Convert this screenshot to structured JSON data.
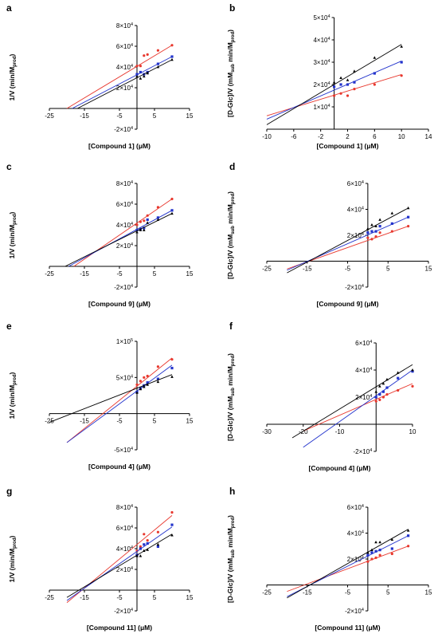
{
  "chart_data": [
    {
      "type": "scatter",
      "panel": "a",
      "xlabel": "[Compound 1] (μM)",
      "ylabel": "1/V (min/M",
      "ylabel_sub": "prod",
      "ylabel_end": ")",
      "xlim": [
        -25,
        15
      ],
      "ylim": [
        -20000,
        80000
      ],
      "xticks": [
        -25,
        -15,
        -5,
        5,
        15
      ],
      "yticks": [
        {
          "v": -20000,
          "m": "-2",
          "e": "4"
        },
        {
          "v": 20000,
          "m": "2",
          "e": "4"
        },
        {
          "v": 40000,
          "m": "4",
          "e": "4"
        },
        {
          "v": 60000,
          "m": "6",
          "e": "4"
        },
        {
          "v": 80000,
          "m": "8",
          "e": "4"
        }
      ],
      "series": [
        {
          "color": "#e8382e",
          "marker": "circle",
          "x": [
            0,
            1,
            2,
            3,
            6,
            10
          ],
          "y": [
            41000,
            41000,
            51000,
            52000,
            56000,
            61000
          ],
          "line": [
            [
              -20,
              0
            ],
            [
              10,
              61000
            ]
          ]
        },
        {
          "color": "#2233cc",
          "marker": "square",
          "x": [
            0,
            1,
            2,
            3,
            6,
            10
          ],
          "y": [
            33000,
            35000,
            33000,
            35000,
            43000,
            50000
          ],
          "line": [
            [
              -18.5,
              0
            ],
            [
              10,
              50000
            ]
          ]
        },
        {
          "color": "#000000",
          "marker": "triangle",
          "x": [
            0,
            1,
            2,
            3,
            6,
            10
          ],
          "y": [
            31000,
            29000,
            31000,
            34000,
            40000,
            47000
          ],
          "line": [
            [
              -17,
              0
            ],
            [
              10,
              47000
            ]
          ]
        }
      ]
    },
    {
      "type": "scatter",
      "panel": "b",
      "xlabel": "[Compound 1] (μM)",
      "ylabel": "[D-Glc]/V (mM",
      "ylabel_sub": "sub",
      "ylabel_mid": " min/M",
      "ylabel_sub2": "prod",
      "ylabel_end": ")",
      "xlim": [
        -10,
        14
      ],
      "ylim": [
        0,
        50000
      ],
      "yaxis_at_x": 0,
      "xticks": [
        -10,
        -6,
        -2,
        2,
        6,
        10,
        14
      ],
      "yticks": [
        {
          "v": 10000,
          "m": "1",
          "e": "4"
        },
        {
          "v": 20000,
          "m": "2",
          "e": "4"
        },
        {
          "v": 30000,
          "m": "3",
          "e": "4"
        },
        {
          "v": 40000,
          "m": "4",
          "e": "4"
        },
        {
          "v": 50000,
          "m": "5",
          "e": "4"
        }
      ],
      "series": [
        {
          "color": "#e8382e",
          "marker": "circle",
          "x": [
            0,
            1,
            2,
            3,
            6,
            10
          ],
          "y": [
            15000,
            16000,
            15000,
            18000,
            20000,
            24000
          ],
          "line": [
            [
              -10,
              6000
            ],
            [
              10,
              24500
            ]
          ]
        },
        {
          "color": "#2233cc",
          "marker": "square",
          "x": [
            0,
            1,
            2,
            3,
            6,
            10
          ],
          "y": [
            19000,
            20000,
            20000,
            21000,
            25000,
            30000
          ],
          "line": [
            [
              -10,
              4500
            ],
            [
              10,
              30500
            ]
          ]
        },
        {
          "color": "#000000",
          "marker": "triangle",
          "x": [
            0,
            1,
            2,
            3,
            6,
            10
          ],
          "y": [
            21000,
            23000,
            22000,
            26000,
            32000,
            37000
          ],
          "line": [
            [
              -10,
              2000
            ],
            [
              10,
              38000
            ]
          ]
        }
      ]
    },
    {
      "type": "scatter",
      "panel": "c",
      "xlabel": "[Compound 9] (μM)",
      "ylabel": "1/V (min/M",
      "ylabel_sub": "prod",
      "ylabel_end": ")",
      "xlim": [
        -25,
        15
      ],
      "ylim": [
        -20000,
        80000
      ],
      "xticks": [
        -25,
        -15,
        -5,
        5,
        15
      ],
      "yticks": [
        {
          "v": -20000,
          "m": "-2",
          "e": "4"
        },
        {
          "v": 20000,
          "m": "2",
          "e": "4"
        },
        {
          "v": 40000,
          "m": "4",
          "e": "4"
        },
        {
          "v": 60000,
          "m": "6",
          "e": "4"
        },
        {
          "v": 80000,
          "m": "8",
          "e": "4"
        }
      ],
      "series": [
        {
          "color": "#e8382e",
          "marker": "circle",
          "x": [
            0,
            1,
            2,
            3,
            6,
            10
          ],
          "y": [
            40000,
            43000,
            44000,
            49000,
            57000,
            65000
          ],
          "line": [
            [
              -18,
              0
            ],
            [
              10,
              65000
            ]
          ]
        },
        {
          "color": "#2233cc",
          "marker": "square",
          "x": [
            0,
            1,
            2,
            3,
            6,
            10
          ],
          "y": [
            35000,
            36000,
            37000,
            45000,
            47000,
            54000
          ],
          "line": [
            [
              -19.5,
              0
            ],
            [
              10,
              54000
            ]
          ]
        },
        {
          "color": "#000000",
          "marker": "triangle",
          "x": [
            0,
            1,
            2,
            3,
            6,
            10
          ],
          "y": [
            33000,
            35000,
            35000,
            42000,
            45000,
            51000
          ],
          "line": [
            [
              -20.5,
              0
            ],
            [
              10,
              51000
            ]
          ]
        }
      ]
    },
    {
      "type": "scatter",
      "panel": "d",
      "xlabel": "[Compound 9] (μM)",
      "ylabel": "[D-Glc]/V (mM",
      "ylabel_sub": "sub",
      "ylabel_mid": " min/M",
      "ylabel_sub2": "prod",
      "ylabel_end": ")",
      "xlim": [
        -25,
        15
      ],
      "ylim": [
        -20000,
        60000
      ],
      "xticks": [
        -25,
        -15,
        -5,
        5,
        15
      ],
      "yticks": [
        {
          "v": -20000,
          "m": "-2",
          "e": "4"
        },
        {
          "v": 20000,
          "m": "2",
          "e": "4"
        },
        {
          "v": 40000,
          "m": "4",
          "e": "4"
        },
        {
          "v": 60000,
          "m": "6",
          "e": "4"
        }
      ],
      "series": [
        {
          "color": "#e8382e",
          "marker": "circle",
          "x": [
            0,
            1,
            2,
            3,
            6,
            10
          ],
          "y": [
            18000,
            17000,
            19000,
            22000,
            23000,
            27000
          ],
          "line": [
            [
              -20,
              -6000
            ],
            [
              10,
              27000
            ]
          ]
        },
        {
          "color": "#2233cc",
          "marker": "square",
          "x": [
            0,
            1,
            2,
            3,
            6,
            10
          ],
          "y": [
            22000,
            23000,
            23000,
            27000,
            29000,
            34000
          ],
          "line": [
            [
              -20,
              -7000
            ],
            [
              10,
              34000
            ]
          ]
        },
        {
          "color": "#000000",
          "marker": "triangle",
          "x": [
            0,
            1,
            2,
            3,
            6,
            10
          ],
          "y": [
            25000,
            28000,
            27000,
            32000,
            37000,
            41000
          ],
          "line": [
            [
              -20,
              -9000
            ],
            [
              10,
              41000
            ]
          ]
        }
      ]
    },
    {
      "type": "scatter",
      "panel": "e",
      "xlabel": "[Compound 4] (μM)",
      "ylabel": "1/V (min/M",
      "ylabel_sub": "prod",
      "ylabel_end": ")",
      "xlim": [
        -25,
        15
      ],
      "ylim": [
        -50000,
        100000
      ],
      "xticks": [
        -25,
        -15,
        -5,
        5,
        15
      ],
      "yticks": [
        {
          "v": -50000,
          "m": "-5",
          "e": "4"
        },
        {
          "v": 50000,
          "m": "5",
          "e": "4"
        },
        {
          "v": 100000,
          "m": "1",
          "e": "5"
        }
      ],
      "series": [
        {
          "color": "#e8382e",
          "marker": "circle",
          "x": [
            0,
            1,
            2,
            3,
            6,
            10
          ],
          "y": [
            40000,
            45000,
            50000,
            52000,
            65000,
            75000
          ],
          "line": [
            [
              -20,
              -40000
            ],
            [
              10,
              77000
            ]
          ]
        },
        {
          "color": "#2233cc",
          "marker": "square",
          "x": [
            0,
            1,
            2,
            3,
            6,
            10
          ],
          "y": [
            30000,
            35000,
            39000,
            43000,
            48000,
            63000
          ],
          "line": [
            [
              -20,
              -40000
            ],
            [
              10,
              67000
            ]
          ]
        },
        {
          "color": "#000000",
          "marker": "triangle",
          "x": [
            0,
            1,
            2,
            3,
            6,
            10
          ],
          "y": [
            29000,
            34000,
            37000,
            40000,
            44000,
            51000
          ],
          "line": [
            [
              -25,
              -12000
            ],
            [
              10,
              54000
            ]
          ]
        }
      ]
    },
    {
      "type": "scatter",
      "panel": "f",
      "xlabel": "[Compound 4] (μM)",
      "ylabel": "[D-Glc]/V (mM",
      "ylabel_sub": "sub",
      "ylabel_mid": " min/M",
      "ylabel_sub2": "prod",
      "ylabel_end": ")",
      "xlim": [
        -30,
        10
      ],
      "ylim": [
        -20000,
        60000
      ],
      "xticks": [
        -30,
        -20,
        -10,
        10
      ],
      "yticks": [
        {
          "v": -20000,
          "m": "-2",
          "e": "4"
        },
        {
          "v": 20000,
          "m": "2",
          "e": "4"
        },
        {
          "v": 40000,
          "m": "4",
          "e": "4"
        },
        {
          "v": 60000,
          "m": "6",
          "e": "4"
        }
      ],
      "series": [
        {
          "color": "#e8382e",
          "marker": "circle",
          "x": [
            0,
            1,
            2,
            3,
            6,
            10
          ],
          "y": [
            17000,
            18000,
            20000,
            22000,
            25000,
            28000
          ],
          "line": [
            [
              -20,
              -5000
            ],
            [
              10,
              30000
            ]
          ]
        },
        {
          "color": "#2233cc",
          "marker": "square",
          "x": [
            0,
            1,
            2,
            3,
            6,
            10
          ],
          "y": [
            20000,
            22000,
            24000,
            27000,
            34000,
            39000
          ],
          "line": [
            [
              -20,
              -17000
            ],
            [
              10,
              40000
            ]
          ]
        },
        {
          "color": "#000000",
          "marker": "triangle",
          "x": [
            0,
            1,
            2,
            3,
            6,
            10
          ],
          "y": [
            24000,
            28000,
            30000,
            33000,
            38000,
            40000
          ],
          "line": [
            [
              -23,
              -10000
            ],
            [
              10,
              44000
            ]
          ]
        }
      ]
    },
    {
      "type": "scatter",
      "panel": "g",
      "xlabel": "[Compound 11] (μM)",
      "ylabel": "1/V (min/M",
      "ylabel_sub": "prod",
      "ylabel_end": ")",
      "xlim": [
        -25,
        15
      ],
      "ylim": [
        -20000,
        80000
      ],
      "xticks": [
        -25,
        -15,
        -5,
        5,
        15
      ],
      "yticks": [
        {
          "v": -20000,
          "m": "-2",
          "e": "4"
        },
        {
          "v": 20000,
          "m": "2",
          "e": "4"
        },
        {
          "v": 40000,
          "m": "4",
          "e": "4"
        },
        {
          "v": 60000,
          "m": "6",
          "e": "4"
        },
        {
          "v": 80000,
          "m": "8",
          "e": "4"
        }
      ],
      "series": [
        {
          "color": "#e8382e",
          "marker": "circle",
          "x": [
            0,
            1,
            2,
            3,
            6,
            10
          ],
          "y": [
            38000,
            42000,
            54000,
            48000,
            56000,
            75000
          ],
          "line": [
            [
              -20,
              -12000
            ],
            [
              10,
              72000
            ]
          ]
        },
        {
          "color": "#2233cc",
          "marker": "square",
          "x": [
            0,
            1,
            2,
            3,
            6,
            10
          ],
          "y": [
            34000,
            40000,
            44000,
            45000,
            42000,
            63000
          ],
          "line": [
            [
              -20,
              -10000
            ],
            [
              10,
              61000
            ]
          ]
        },
        {
          "color": "#000000",
          "marker": "triangle",
          "x": [
            0,
            1,
            2,
            3,
            6,
            10
          ],
          "y": [
            33000,
            33000,
            38000,
            39000,
            44000,
            53000
          ],
          "line": [
            [
              -20,
              -7000
            ],
            [
              10,
              54000
            ]
          ]
        }
      ]
    },
    {
      "type": "scatter",
      "panel": "h",
      "xlabel": "[Compound 11] (μM)",
      "ylabel": "[D-Glc]/V (mM",
      "ylabel_sub": "sub",
      "ylabel_mid": " min/M",
      "ylabel_sub2": "prod",
      "ylabel_end": ")",
      "xlim": [
        -25,
        15
      ],
      "ylim": [
        -20000,
        60000
      ],
      "xticks": [
        -25,
        -15,
        -5,
        5,
        15
      ],
      "yticks": [
        {
          "v": -20000,
          "m": "-2",
          "e": "4"
        },
        {
          "v": 20000,
          "m": "2",
          "e": "4"
        },
        {
          "v": 40000,
          "m": "4",
          "e": "4"
        },
        {
          "v": 60000,
          "m": "6",
          "e": "4"
        }
      ],
      "series": [
        {
          "color": "#e8382e",
          "marker": "circle",
          "x": [
            0,
            1,
            2,
            3,
            6,
            10
          ],
          "y": [
            18000,
            20000,
            21000,
            23000,
            24000,
            30000
          ],
          "line": [
            [
              -20,
              -5000
            ],
            [
              10,
              30000
            ]
          ]
        },
        {
          "color": "#2233cc",
          "marker": "square",
          "x": [
            0,
            1,
            2,
            3,
            6,
            10
          ],
          "y": [
            23000,
            25000,
            26000,
            27000,
            28000,
            38000
          ],
          "line": [
            [
              -20,
              -9000
            ],
            [
              10,
              38000
            ]
          ]
        },
        {
          "color": "#000000",
          "marker": "triangle",
          "x": [
            0,
            1,
            2,
            3,
            6,
            10
          ],
          "y": [
            25000,
            27000,
            33000,
            33000,
            35000,
            42000
          ],
          "line": [
            [
              -20,
              -10000
            ],
            [
              10,
              43000
            ]
          ]
        }
      ]
    }
  ]
}
